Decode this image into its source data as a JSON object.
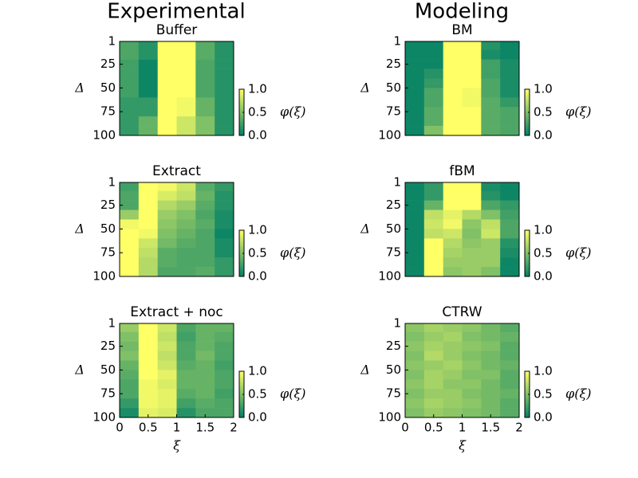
{
  "column_titles": [
    "Experimental",
    "Modeling"
  ],
  "chart_data": [
    {
      "type": "heatmap",
      "title": "Buffer",
      "ylabel": "Δ",
      "colorbar_label": "φ(ξ)",
      "xlim": [
        0,
        2
      ],
      "ylim": [
        100,
        1
      ],
      "yticks": [
        1,
        25,
        50,
        75,
        100
      ],
      "x_bins": [
        0,
        0.333,
        0.667,
        1,
        1.333,
        1.667,
        2
      ],
      "y_bins": [
        1,
        10,
        20,
        30,
        40,
        50,
        60,
        70,
        80,
        90,
        100
      ],
      "cmap": [
        "#008066",
        "#ffff66"
      ],
      "clim": [
        0,
        1
      ],
      "cticks": [
        {
          "value": 0,
          "label": "0.0"
        },
        {
          "value": 0.5,
          "label": "0.5"
        },
        {
          "value": 1,
          "label": "1.0"
        }
      ],
      "values": [
        [
          0.3,
          0.15,
          1,
          1,
          0.35,
          0.15
        ],
        [
          0.3,
          0.15,
          1,
          1,
          0.35,
          0.15
        ],
        [
          0.25,
          0.05,
          1,
          1,
          0.3,
          0.15
        ],
        [
          0.25,
          0.05,
          1,
          1,
          0.3,
          0.15
        ],
        [
          0.25,
          0.05,
          1,
          1,
          0.3,
          0.15
        ],
        [
          0.25,
          0.05,
          1,
          1,
          0.3,
          0.15
        ],
        [
          0.2,
          0.2,
          1,
          0.95,
          0.4,
          0.15
        ],
        [
          0.2,
          0.2,
          1,
          0.95,
          0.4,
          0.15
        ],
        [
          0.2,
          0.4,
          1,
          0.8,
          0.5,
          0.15
        ],
        [
          0.2,
          0.4,
          1,
          0.8,
          0.5,
          0.15
        ]
      ]
    },
    {
      "type": "heatmap",
      "title": "Extract",
      "ylabel": "Δ",
      "colorbar_label": "φ(ξ)",
      "xlim": [
        0,
        2
      ],
      "ylim": [
        100,
        1
      ],
      "yticks": [
        1,
        25,
        50,
        75,
        100
      ],
      "x_bins": [
        0,
        0.333,
        0.667,
        1,
        1.333,
        1.667,
        2
      ],
      "y_bins": [
        1,
        10,
        20,
        30,
        40,
        50,
        60,
        70,
        80,
        90,
        100
      ],
      "cmap": [
        "#008066",
        "#ffff66"
      ],
      "clim": [
        0,
        1
      ],
      "cticks": [
        {
          "value": 0,
          "label": "0.0"
        },
        {
          "value": 0.5,
          "label": "0.5"
        },
        {
          "value": 1,
          "label": "1.0"
        }
      ],
      "values": [
        [
          0.25,
          1,
          0.95,
          0.8,
          0.35,
          0.2
        ],
        [
          0.3,
          1,
          0.85,
          0.75,
          0.4,
          0.15
        ],
        [
          0.3,
          1,
          0.7,
          0.6,
          0.35,
          0.15
        ],
        [
          0.6,
          1,
          0.6,
          0.5,
          0.3,
          0.1
        ],
        [
          0.95,
          1,
          0.55,
          0.45,
          0.35,
          0.1
        ],
        [
          1,
          0.95,
          0.5,
          0.4,
          0.3,
          0.05
        ],
        [
          1,
          0.8,
          0.45,
          0.35,
          0.3,
          0.1
        ],
        [
          1,
          0.75,
          0.35,
          0.3,
          0.3,
          0.1
        ],
        [
          1,
          0.7,
          0.35,
          0.3,
          0.3,
          0.2
        ],
        [
          1,
          0.7,
          0.3,
          0.3,
          0.35,
          0.2
        ]
      ]
    },
    {
      "type": "heatmap",
      "title": "Extract + noc",
      "ylabel": "Δ",
      "xlabel": "ξ",
      "colorbar_label": "φ(ξ)",
      "xlim": [
        0,
        2
      ],
      "xticks": [
        0,
        0.5,
        1,
        1.5,
        2
      ],
      "ylim": [
        100,
        1
      ],
      "yticks": [
        1,
        25,
        50,
        75,
        100
      ],
      "x_bins": [
        0,
        0.333,
        0.667,
        1,
        1.333,
        1.667,
        2
      ],
      "y_bins": [
        1,
        10,
        20,
        30,
        40,
        50,
        60,
        70,
        80,
        90,
        100
      ],
      "cmap": [
        "#008066",
        "#ffff66"
      ],
      "clim": [
        0,
        1
      ],
      "cticks": [
        {
          "value": 0,
          "label": "0.0"
        },
        {
          "value": 0.5,
          "label": "0.5"
        },
        {
          "value": 1,
          "label": "1.0"
        }
      ],
      "values": [
        [
          0.6,
          1,
          0.8,
          0.3,
          0.4,
          0.4
        ],
        [
          0.5,
          1,
          0.75,
          0.25,
          0.4,
          0.35
        ],
        [
          0.45,
          1,
          0.8,
          0.3,
          0.4,
          0.3
        ],
        [
          0.5,
          1,
          0.75,
          0.3,
          0.45,
          0.3
        ],
        [
          0.4,
          1,
          0.8,
          0.35,
          0.4,
          0.25
        ],
        [
          0.35,
          1,
          0.9,
          0.4,
          0.4,
          0.3
        ],
        [
          0.3,
          0.95,
          0.85,
          0.4,
          0.4,
          0.3
        ],
        [
          0.3,
          0.95,
          0.9,
          0.35,
          0.4,
          0.25
        ],
        [
          0.2,
          0.95,
          0.9,
          0.25,
          0.35,
          0.3
        ],
        [
          0.1,
          0.9,
          0.85,
          0.15,
          0.3,
          0.3
        ]
      ]
    },
    {
      "type": "heatmap",
      "title": "BM",
      "ylabel": "Δ",
      "colorbar_label": "φ(ξ)",
      "xlim": [
        0,
        2
      ],
      "ylim": [
        100,
        1
      ],
      "yticks": [
        1,
        25,
        50,
        75,
        100
      ],
      "x_bins": [
        0,
        0.333,
        0.667,
        1,
        1.333,
        1.667,
        2
      ],
      "y_bins": [
        1,
        10,
        20,
        30,
        40,
        50,
        60,
        70,
        80,
        90,
        100
      ],
      "cmap": [
        "#008066",
        "#ffff66"
      ],
      "clim": [
        0,
        1
      ],
      "cticks": [
        {
          "value": 0,
          "label": "0.0"
        },
        {
          "value": 0.5,
          "label": "0.5"
        },
        {
          "value": 1,
          "label": "1.0"
        }
      ],
      "values": [
        [
          0.05,
          0.05,
          1,
          1,
          0.15,
          0.05
        ],
        [
          0.05,
          0.05,
          1,
          1,
          0.1,
          0.05
        ],
        [
          0.05,
          0.05,
          1,
          1,
          0.25,
          0.1
        ],
        [
          0.05,
          0.15,
          1,
          1,
          0.25,
          0.1
        ],
        [
          0.05,
          0.2,
          1,
          1,
          0.3,
          0.1
        ],
        [
          0.05,
          0.3,
          1,
          0.95,
          0.3,
          0.1
        ],
        [
          0.05,
          0.3,
          1,
          0.95,
          0.35,
          0.2
        ],
        [
          0.05,
          0.35,
          1,
          1,
          0.35,
          0.3
        ],
        [
          0.05,
          0.35,
          1,
          1,
          0.35,
          0.3
        ],
        [
          0.05,
          0.5,
          1,
          1,
          0.35,
          0.3
        ]
      ]
    },
    {
      "type": "heatmap",
      "title": "fBM",
      "ylabel": "Δ",
      "colorbar_label": "φ(ξ)",
      "xlim": [
        0,
        2
      ],
      "ylim": [
        100,
        1
      ],
      "yticks": [
        1,
        25,
        50,
        75,
        100
      ],
      "x_bins": [
        0,
        0.333,
        0.667,
        1,
        1.333,
        1.667,
        2
      ],
      "y_bins": [
        1,
        10,
        20,
        30,
        40,
        50,
        60,
        70,
        80,
        90,
        100
      ],
      "cmap": [
        "#008066",
        "#ffff66"
      ],
      "clim": [
        0,
        1
      ],
      "cticks": [
        {
          "value": 0,
          "label": "0.0"
        },
        {
          "value": 0.5,
          "label": "0.5"
        },
        {
          "value": 1,
          "label": "1.0"
        }
      ],
      "values": [
        [
          0.05,
          0.2,
          1,
          1,
          0.1,
          0.05
        ],
        [
          0.05,
          0.2,
          1,
          1,
          0.15,
          0.05
        ],
        [
          0.05,
          0.4,
          1,
          1,
          0.3,
          0.2
        ],
        [
          0.05,
          0.75,
          0.9,
          0.7,
          0.5,
          0.25
        ],
        [
          0.05,
          0.8,
          0.95,
          0.55,
          0.75,
          0.3
        ],
        [
          0.05,
          0.75,
          0.8,
          0.5,
          0.8,
          0.3
        ],
        [
          0.05,
          1,
          0.7,
          0.55,
          0.6,
          0.15
        ],
        [
          0.05,
          1,
          0.65,
          0.6,
          0.6,
          0.1
        ],
        [
          0.05,
          1,
          0.6,
          0.6,
          0.6,
          0.05
        ],
        [
          0.05,
          1,
          0.55,
          0.6,
          0.5,
          0.05
        ]
      ]
    },
    {
      "type": "heatmap",
      "title": "CTRW",
      "ylabel": "Δ",
      "xlabel": "ξ",
      "colorbar_label": "φ(ξ)",
      "xlim": [
        0,
        2
      ],
      "xticks": [
        0,
        0.5,
        1,
        1.5,
        2
      ],
      "ylim": [
        100,
        1
      ],
      "yticks": [
        1,
        25,
        50,
        75,
        100
      ],
      "x_bins": [
        0,
        0.333,
        0.667,
        1,
        1.333,
        1.667,
        2
      ],
      "y_bins": [
        1,
        10,
        20,
        30,
        40,
        50,
        60,
        70,
        80,
        90,
        100
      ],
      "cmap": [
        "#008066",
        "#ffff66"
      ],
      "clim": [
        0,
        1
      ],
      "cticks": [
        {
          "value": 0,
          "label": "0.0"
        },
        {
          "value": 0.5,
          "label": "0.5"
        },
        {
          "value": 1,
          "label": "1.0"
        }
      ],
      "values": [
        [
          0.55,
          0.65,
          0.6,
          0.55,
          0.45,
          0.35
        ],
        [
          0.5,
          0.6,
          0.65,
          0.5,
          0.45,
          0.4
        ],
        [
          0.55,
          0.65,
          0.6,
          0.55,
          0.5,
          0.35
        ],
        [
          0.5,
          0.7,
          0.6,
          0.5,
          0.45,
          0.35
        ],
        [
          0.55,
          0.6,
          0.65,
          0.55,
          0.45,
          0.4
        ],
        [
          0.5,
          0.65,
          0.6,
          0.5,
          0.5,
          0.35
        ],
        [
          0.55,
          0.65,
          0.55,
          0.55,
          0.45,
          0.35
        ],
        [
          0.5,
          0.6,
          0.6,
          0.5,
          0.45,
          0.4
        ],
        [
          0.55,
          0.65,
          0.6,
          0.55,
          0.45,
          0.35
        ],
        [
          0.5,
          0.6,
          0.55,
          0.5,
          0.45,
          0.35
        ]
      ]
    }
  ]
}
